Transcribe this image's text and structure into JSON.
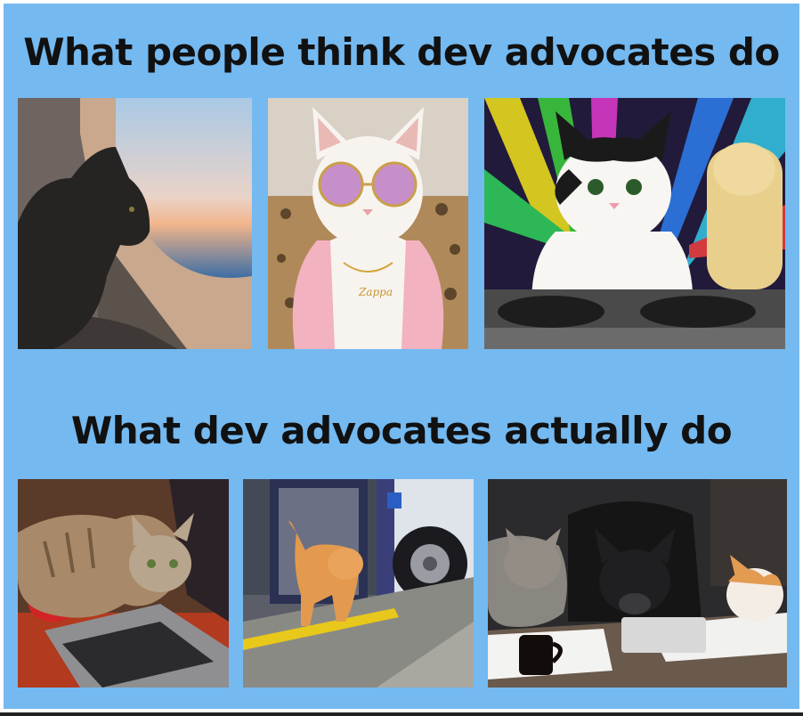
{
  "headings": {
    "top": "What people think dev advocates do",
    "bottom": "What dev advocates actually do"
  },
  "photos": {
    "top_row": [
      {
        "subject": "cat-looking-out-airplane-window"
      },
      {
        "subject": "white-cat-with-sunglasses-and-pink-hoodie",
        "necklace_text": "Zappa"
      },
      {
        "subject": "cats-dj-at-turntables-with-disco-lights"
      }
    ],
    "bottom_row": [
      {
        "subject": "tabby-cat-lying-on-laptop"
      },
      {
        "subject": "orange-cat-stepping-off-bus"
      },
      {
        "subject": "cats-and-french-bulldog-at-desk-with-papers"
      }
    ]
  },
  "colors": {
    "background": "#74b9f0",
    "heading_text": "#111111"
  }
}
